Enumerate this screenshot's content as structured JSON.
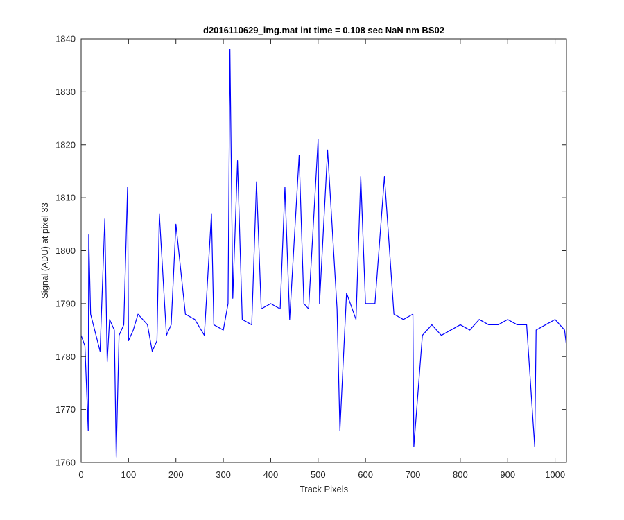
{
  "chart_data": {
    "type": "line",
    "title": "d2016110629_img.mat int time = 0.108 sec  NaN nm BS02",
    "xlabel": "Track Pixels",
    "ylabel": "Signal (ADU) at pixel 33",
    "xlim": [
      0,
      1024
    ],
    "ylim": [
      1760,
      1840
    ],
    "xticks": [
      0,
      100,
      200,
      300,
      400,
      500,
      600,
      700,
      800,
      900,
      1000
    ],
    "yticks": [
      1760,
      1770,
      1780,
      1790,
      1800,
      1810,
      1820,
      1830,
      1840
    ],
    "grid": false,
    "legend": "none",
    "series": [
      {
        "color": "#0000ff",
        "x": [
          0,
          8,
          15,
          16,
          20,
          40,
          50,
          55,
          60,
          70,
          74,
          80,
          90,
          98,
          100,
          110,
          120,
          140,
          150,
          160,
          165,
          180,
          190,
          200,
          220,
          240,
          260,
          275,
          280,
          300,
          310,
          314,
          320,
          330,
          340,
          360,
          370,
          380,
          400,
          420,
          430,
          440,
          460,
          470,
          480,
          500,
          503,
          520,
          540,
          546,
          560,
          580,
          590,
          600,
          620,
          640,
          660,
          680,
          700,
          702,
          720,
          740,
          760,
          780,
          800,
          820,
          840,
          860,
          880,
          900,
          920,
          940,
          957,
          960,
          980,
          1000,
          1020,
          1024
        ],
        "y": [
          1784,
          1782,
          1766,
          1803,
          1788,
          1781,
          1806,
          1779,
          1787,
          1785,
          1761,
          1784,
          1786,
          1812,
          1783,
          1785,
          1788,
          1786,
          1781,
          1783,
          1807,
          1784,
          1786,
          1805,
          1788,
          1787,
          1784,
          1807,
          1786,
          1785,
          1790,
          1838,
          1791,
          1817,
          1787,
          1786,
          1813,
          1789,
          1790,
          1789,
          1812,
          1787,
          1818,
          1790,
          1789,
          1821,
          1790,
          1819,
          1789,
          1766,
          1792,
          1787,
          1814,
          1790,
          1790,
          1814,
          1788,
          1787,
          1788,
          1763,
          1784,
          1786,
          1784,
          1785,
          1786,
          1785,
          1787,
          1786,
          1786,
          1787,
          1786,
          1786,
          1763,
          1785,
          1786,
          1787,
          1785,
          1782
        ]
      }
    ]
  }
}
